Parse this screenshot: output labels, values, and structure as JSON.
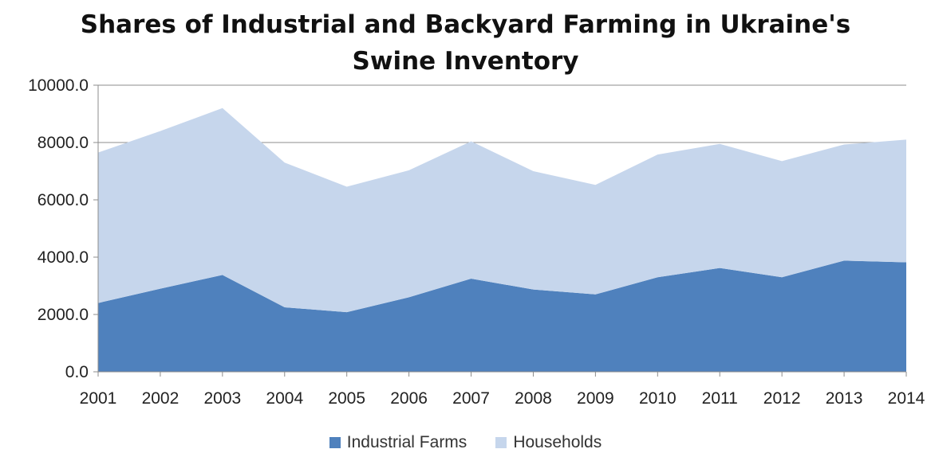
{
  "chart_data": {
    "type": "area",
    "stacked": true,
    "title_line1": "Shares of Industrial and Backyard Farming in Ukraine's",
    "title_line2": "Swine Inventory",
    "x": [
      "2001",
      "2002",
      "2003",
      "2004",
      "2005",
      "2006",
      "2007",
      "2008",
      "2009",
      "2010",
      "2011",
      "2012",
      "2013",
      "2014"
    ],
    "y_ticks": [
      "0.0",
      "2000.0",
      "4000.0",
      "6000.0",
      "8000.0",
      "10000.0"
    ],
    "ylim": [
      0,
      10000
    ],
    "grid": "horizontal",
    "legend_position": "bottom",
    "series": [
      {
        "name": "Industrial Farms",
        "color": "#4f81bd",
        "values": [
          2400,
          2900,
          3380,
          2250,
          2080,
          2600,
          3250,
          2870,
          2700,
          3300,
          3620,
          3300,
          3880,
          3820
        ]
      },
      {
        "name": "Households",
        "color": "#c6d6ec",
        "values": [
          5250,
          5500,
          5820,
          5050,
          4380,
          4430,
          4790,
          4130,
          3820,
          4280,
          4330,
          4050,
          4050,
          4280
        ]
      }
    ]
  }
}
